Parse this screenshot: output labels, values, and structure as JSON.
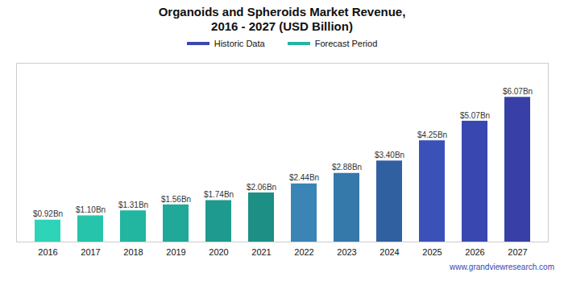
{
  "chart_data": {
    "type": "bar",
    "title": "Organoids and Spheroids Market Revenue,",
    "subtitle": "2016 - 2027 (USD Billion)",
    "categories": [
      "2016",
      "2017",
      "2018",
      "2019",
      "2020",
      "2021",
      "2022",
      "2023",
      "2024",
      "2025",
      "2026",
      "2027"
    ],
    "values": [
      0.92,
      1.1,
      1.31,
      1.56,
      1.74,
      2.06,
      2.44,
      2.88,
      3.4,
      4.25,
      5.07,
      6.07
    ],
    "value_labels": [
      "$0.92Bn",
      "$1.10Bn",
      "$1.31Bn",
      "$1.56Bn",
      "$1.74Bn",
      "$2.06Bn",
      "$2.44Bn",
      "$2.88Bn",
      "$3.40Bn",
      "$4.25Bn",
      "$5.07Bn",
      "$6.07Bn"
    ],
    "colors": [
      "#2dd4b8",
      "#26c4aa",
      "#22b5a0",
      "#20a898",
      "#1e9b8e",
      "#1d8f85",
      "#3a85b5",
      "#3578aa",
      "#3060a0",
      "#3a52b8",
      "#3848b0",
      "#3840a8"
    ],
    "ylim": [
      0,
      7.5
    ],
    "data_labels": true,
    "tick_labels": "x",
    "annotations": [
      {
        "text": "Historic Data",
        "color": "#3848b0"
      },
      {
        "text": "Forecast Period",
        "color": "#22b5a0"
      }
    ],
    "caption": "www.grandviewresearch.com"
  }
}
